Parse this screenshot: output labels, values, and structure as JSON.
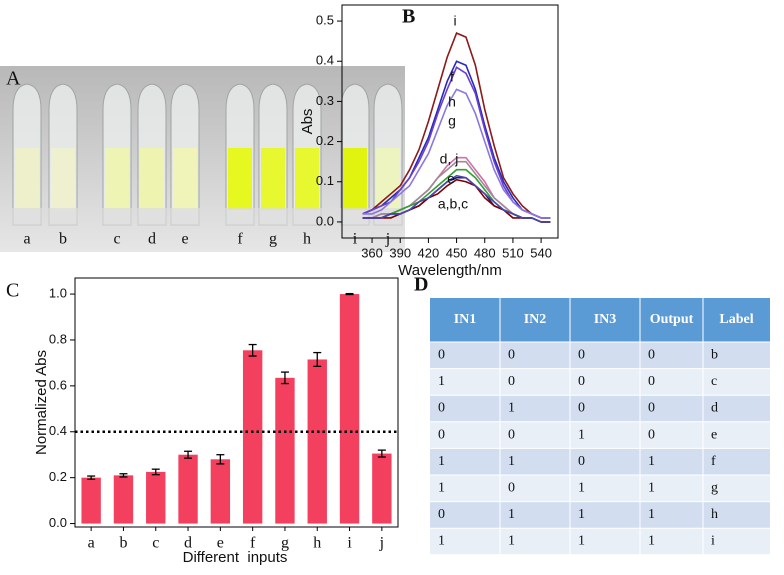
{
  "panel_a": {
    "letter": "A",
    "tubes": [
      {
        "label": "a",
        "color": "#eef0cc"
      },
      {
        "label": "b",
        "color": "#eef0d0"
      },
      {
        "label": "c",
        "color": "#eef4b4"
      },
      {
        "label": "d",
        "color": "#eef4b0"
      },
      {
        "label": "e",
        "color": "#f0f4b8"
      },
      {
        "label": "f",
        "color": "#e6f820"
      },
      {
        "label": "g",
        "color": "#e8f830"
      },
      {
        "label": "h",
        "color": "#e8f830"
      },
      {
        "label": "i",
        "color": "#e0f410"
      },
      {
        "label": "j",
        "color": "#eef4c0"
      }
    ]
  },
  "chart_data": [
    {
      "type": "line",
      "panel_label": "B",
      "x_label": "Wavelength/nm",
      "y_label": "Abs",
      "x": [
        350,
        360,
        370,
        380,
        390,
        400,
        410,
        420,
        430,
        440,
        450,
        460,
        470,
        480,
        490,
        500,
        510,
        520,
        530,
        540,
        550
      ],
      "xlim": [
        328,
        558
      ],
      "xticks": [
        360,
        390,
        420,
        450,
        480,
        510,
        540
      ],
      "ylim": [
        -0.04,
        0.54
      ],
      "yticks": [
        {
          "value": 0,
          "label": "0.0"
        },
        {
          "value": 0.1,
          "label": "0.1"
        },
        {
          "value": 0.2,
          "label": "0.2"
        },
        {
          "value": 0.3,
          "label": "0.3"
        },
        {
          "value": 0.4,
          "label": "0.4"
        },
        {
          "value": 0.5,
          "label": "0.5"
        }
      ],
      "series": [
        {
          "color": "#8b1a1a",
          "values": [
            0.02,
            0.03,
            0.05,
            0.07,
            0.09,
            0.13,
            0.18,
            0.25,
            0.33,
            0.41,
            0.47,
            0.46,
            0.39,
            0.28,
            0.19,
            0.11,
            0.07,
            0.04,
            0.02,
            0.01,
            0.01
          ]
        },
        {
          "color": "#2a2ab8",
          "values": [
            0.02,
            0.03,
            0.04,
            0.06,
            0.08,
            0.11,
            0.16,
            0.21,
            0.28,
            0.35,
            0.4,
            0.39,
            0.33,
            0.24,
            0.16,
            0.1,
            0.06,
            0.03,
            0.02,
            0.01,
            0.01
          ]
        },
        {
          "color": "#6a3ed0",
          "values": [
            0.02,
            0.03,
            0.04,
            0.05,
            0.08,
            0.11,
            0.15,
            0.2,
            0.27,
            0.33,
            0.385,
            0.37,
            0.32,
            0.23,
            0.15,
            0.09,
            0.05,
            0.03,
            0.02,
            0.01,
            0.01
          ]
        },
        {
          "color": "#8a78e0",
          "values": [
            0.02,
            0.02,
            0.03,
            0.05,
            0.07,
            0.09,
            0.13,
            0.17,
            0.23,
            0.29,
            0.33,
            0.32,
            0.27,
            0.2,
            0.13,
            0.08,
            0.05,
            0.03,
            0.02,
            0.01,
            0.01
          ]
        },
        {
          "color": "#d070a8",
          "values": [
            0.01,
            0.01,
            0.02,
            0.02,
            0.03,
            0.04,
            0.06,
            0.08,
            0.11,
            0.14,
            0.16,
            0.16,
            0.13,
            0.1,
            0.06,
            0.04,
            0.02,
            0.01,
            0.01,
            0.0,
            0.0
          ]
        },
        {
          "color": "#a08898",
          "values": [
            0.01,
            0.01,
            0.02,
            0.02,
            0.03,
            0.04,
            0.06,
            0.08,
            0.11,
            0.13,
            0.15,
            0.15,
            0.12,
            0.09,
            0.06,
            0.04,
            0.02,
            0.01,
            0.01,
            0.0,
            0.0
          ]
        },
        {
          "color": "#30a030",
          "values": [
            0.01,
            0.01,
            0.01,
            0.02,
            0.03,
            0.04,
            0.05,
            0.07,
            0.09,
            0.11,
            0.13,
            0.13,
            0.11,
            0.08,
            0.05,
            0.03,
            0.02,
            0.01,
            0.01,
            0.0,
            0.0
          ]
        },
        {
          "color": "#1c1c5c",
          "values": [
            0.01,
            0.01,
            0.01,
            0.02,
            0.02,
            0.03,
            0.04,
            0.06,
            0.08,
            0.1,
            0.11,
            0.11,
            0.09,
            0.07,
            0.04,
            0.03,
            0.02,
            0.01,
            0.01,
            0.0,
            0.0
          ]
        },
        {
          "color": "#800000",
          "values": [
            0.01,
            0.01,
            0.01,
            0.01,
            0.02,
            0.03,
            0.04,
            0.06,
            0.07,
            0.09,
            0.105,
            0.1,
            0.09,
            0.06,
            0.04,
            0.03,
            0.01,
            0.01,
            0.01,
            0.0,
            0.0
          ]
        },
        {
          "color": "#4848b0",
          "values": [
            0.01,
            0.01,
            0.01,
            0.02,
            0.02,
            0.03,
            0.05,
            0.06,
            0.08,
            0.1,
            0.115,
            0.11,
            0.09,
            0.07,
            0.05,
            0.03,
            0.02,
            0.01,
            0.01,
            0.0,
            0.0
          ]
        }
      ],
      "annotations": [
        "i",
        "f",
        "h",
        "g",
        "d, j",
        "e",
        "a,b,c"
      ]
    },
    {
      "type": "bar",
      "panel_label": "C",
      "x_label": "Different  inputs",
      "y_label": "Normalized Abs",
      "categories": [
        "a",
        "b",
        "c",
        "d",
        "e",
        "f",
        "g",
        "h",
        "i",
        "j"
      ],
      "values": [
        0.2,
        0.21,
        0.225,
        0.3,
        0.28,
        0.755,
        0.635,
        0.715,
        1.0,
        0.305
      ],
      "errors": [
        0.007,
        0.007,
        0.012,
        0.015,
        0.02,
        0.025,
        0.025,
        0.03,
        0.002,
        0.015
      ],
      "color": "#f2405e",
      "reference_line": 0.4,
      "ylim": [
        -0.015,
        1.07
      ],
      "yticks": [
        {
          "value": 0,
          "label": "0.0"
        },
        {
          "value": 0.2,
          "label": "0.2"
        },
        {
          "value": 0.4,
          "label": "0.4"
        },
        {
          "value": 0.6,
          "label": "0.6"
        },
        {
          "value": 0.8,
          "label": "0.8"
        },
        {
          "value": 1.0,
          "label": "1.0"
        }
      ]
    }
  ],
  "table": {
    "letter": "D",
    "header": [
      "IN1",
      "IN2",
      "IN3",
      "Output",
      "Label"
    ],
    "rows": [
      [
        0,
        0,
        0,
        0,
        "b"
      ],
      [
        1,
        0,
        0,
        0,
        "c"
      ],
      [
        0,
        1,
        0,
        0,
        "d"
      ],
      [
        0,
        0,
        1,
        0,
        "e"
      ],
      [
        1,
        1,
        0,
        1,
        "f"
      ],
      [
        1,
        0,
        1,
        1,
        "g"
      ],
      [
        0,
        1,
        1,
        1,
        "h"
      ],
      [
        1,
        1,
        1,
        1,
        "i"
      ]
    ]
  }
}
